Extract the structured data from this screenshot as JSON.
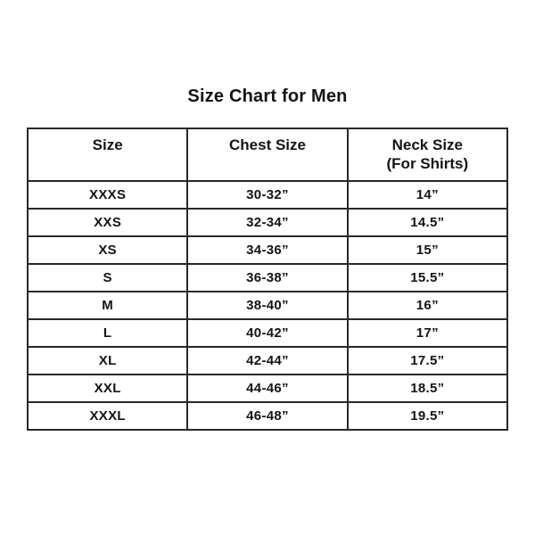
{
  "title": "Size Chart for Men",
  "table": {
    "headers": [
      "Size",
      "Chest Size",
      "Neck Size\n(For Shirts)"
    ],
    "rows": [
      [
        "XXXS",
        "30-32”",
        "14”"
      ],
      [
        "XXS",
        "32-34”",
        "14.5”"
      ],
      [
        "XS",
        "34-36”",
        "15”"
      ],
      [
        "S",
        "36-38”",
        "15.5”"
      ],
      [
        "M",
        "38-40”",
        "16”"
      ],
      [
        "L",
        "40-42”",
        "17”"
      ],
      [
        "XL",
        "42-44”",
        "17.5”"
      ],
      [
        "XXL",
        "44-46”",
        "18.5”"
      ],
      [
        "XXXL",
        "46-48”",
        "19.5”"
      ]
    ]
  },
  "colors": {
    "background": "#ffffff",
    "text": "#151314",
    "border": "#2b2728"
  },
  "chart_data": {
    "type": "table",
    "title": "Size Chart for Men",
    "columns": [
      "Size",
      "Chest Size",
      "Neck Size (For Shirts)"
    ],
    "rows": [
      [
        "XXXS",
        "30-32”",
        "14”"
      ],
      [
        "XXS",
        "32-34”",
        "14.5”"
      ],
      [
        "XS",
        "34-36”",
        "15”"
      ],
      [
        "S",
        "36-38”",
        "15.5”"
      ],
      [
        "M",
        "38-40”",
        "16”"
      ],
      [
        "L",
        "40-42”",
        "17”"
      ],
      [
        "XL",
        "42-44”",
        "17.5”"
      ],
      [
        "XXL",
        "44-46”",
        "18.5”"
      ],
      [
        "XXXL",
        "46-48”",
        "19.5”"
      ]
    ]
  }
}
